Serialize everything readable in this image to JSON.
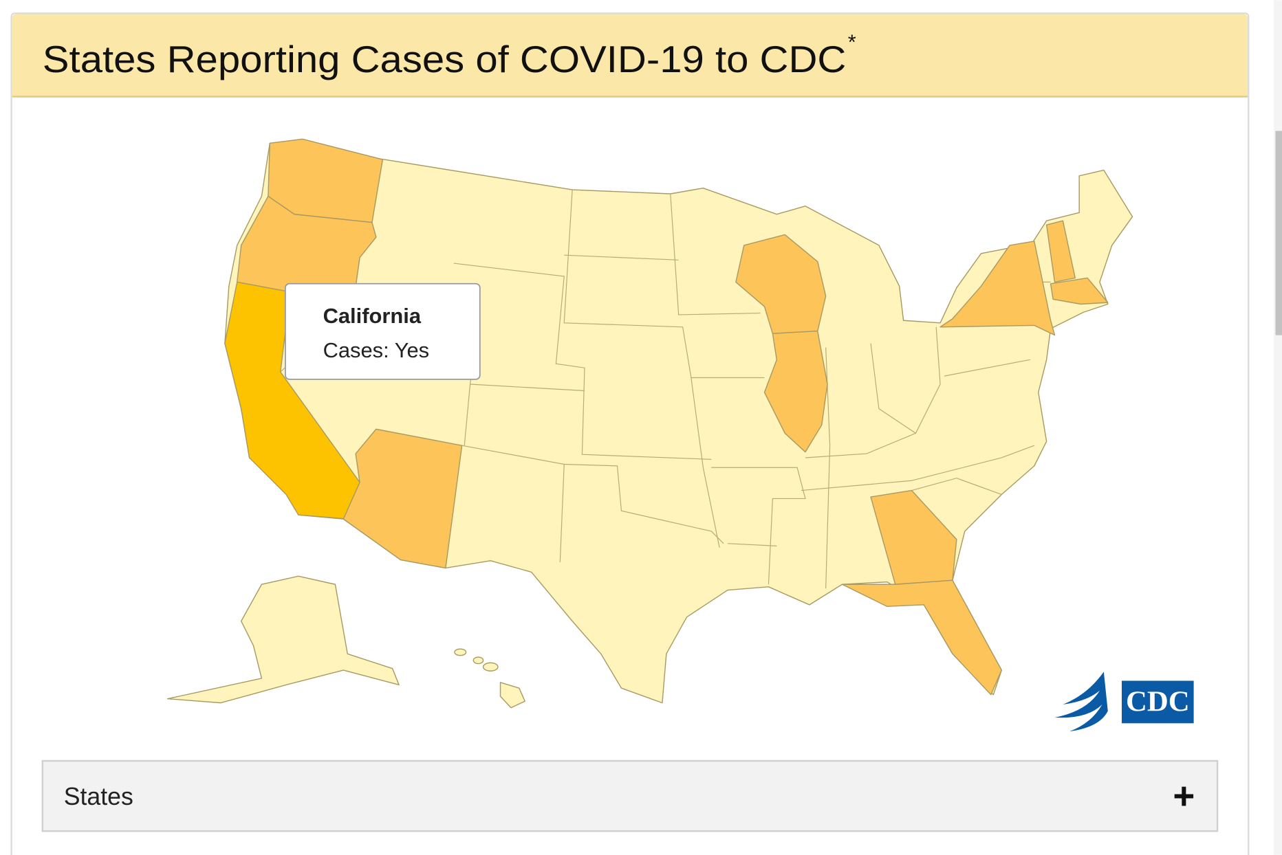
{
  "header": {
    "title": "States Reporting Cases of COVID-19 to CDC",
    "footnote_mark": "*"
  },
  "tooltip": {
    "state": "California",
    "cases": "Cases: Yes"
  },
  "logo": "CDC",
  "accordion": {
    "label": "States",
    "toggle": "+"
  }
}
